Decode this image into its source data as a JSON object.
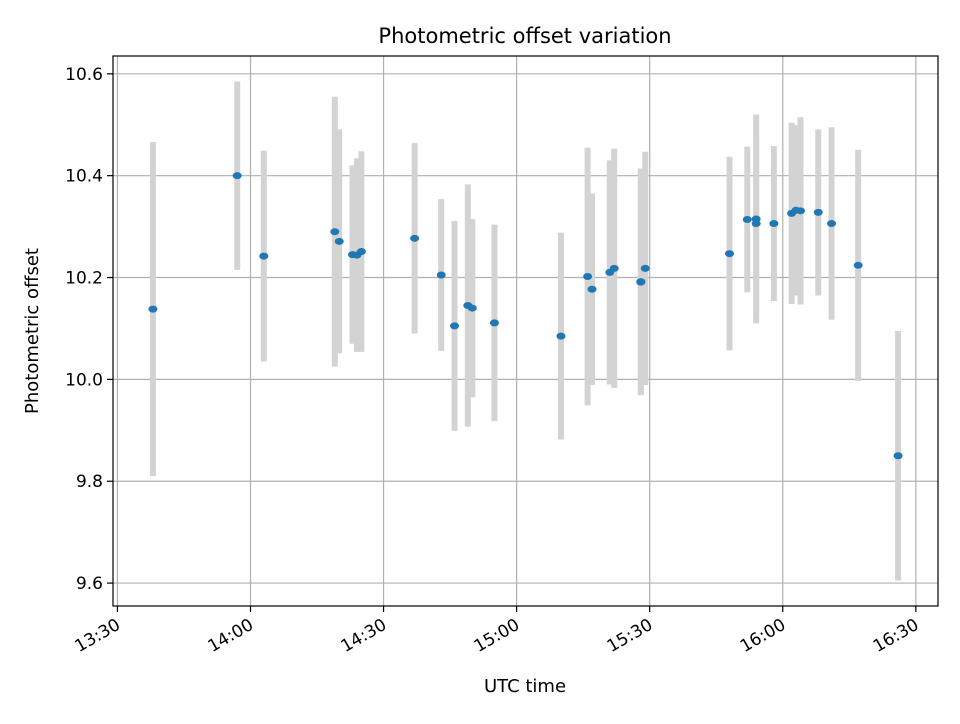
{
  "chart_data": {
    "type": "scatter",
    "title": "Photometric offset variation",
    "xlabel": "UTC time",
    "ylabel": "Photometric offset",
    "xlim": [
      "13:29",
      "16:35"
    ],
    "ylim": [
      9.555,
      10.635
    ],
    "grid": true,
    "colors": {
      "points": "#1f77b4",
      "errorbars": "#d3d3d3",
      "grid": "#b0b0b0"
    },
    "x_ticks": [
      "13:30",
      "14:00",
      "14:30",
      "15:00",
      "15:30",
      "16:00",
      "16:30"
    ],
    "y_ticks": [
      "9.6",
      "9.8",
      "10.0",
      "10.2",
      "10.4",
      "10.6"
    ],
    "points": [
      {
        "x": "13:38",
        "y": 10.138,
        "err": 0.328
      },
      {
        "x": "13:57",
        "y": 10.4,
        "err": 0.185
      },
      {
        "x": "14:03",
        "y": 10.242,
        "err": 0.207
      },
      {
        "x": "14:19",
        "y": 10.29,
        "err": 0.265
      },
      {
        "x": "14:20",
        "y": 10.271,
        "err": 0.22
      },
      {
        "x": "14:23",
        "y": 10.245,
        "err": 0.175
      },
      {
        "x": "14:24",
        "y": 10.244,
        "err": 0.19
      },
      {
        "x": "14:25",
        "y": 10.251,
        "err": 0.197
      },
      {
        "x": "14:37",
        "y": 10.277,
        "err": 0.187
      },
      {
        "x": "14:43",
        "y": 10.205,
        "err": 0.149
      },
      {
        "x": "14:46",
        "y": 10.105,
        "err": 0.206
      },
      {
        "x": "14:49",
        "y": 10.145,
        "err": 0.238
      },
      {
        "x": "14:50",
        "y": 10.14,
        "err": 0.175
      },
      {
        "x": "14:55",
        "y": 10.111,
        "err": 0.193
      },
      {
        "x": "15:10",
        "y": 10.085,
        "err": 0.203
      },
      {
        "x": "15:16",
        "y": 10.202,
        "err": 0.253
      },
      {
        "x": "15:17",
        "y": 10.177,
        "err": 0.188
      },
      {
        "x": "15:21",
        "y": 10.21,
        "err": 0.22
      },
      {
        "x": "15:22",
        "y": 10.218,
        "err": 0.235
      },
      {
        "x": "15:28",
        "y": 10.192,
        "err": 0.222
      },
      {
        "x": "15:28",
        "y": 10.191,
        "err": 0.222
      },
      {
        "x": "15:29",
        "y": 10.218,
        "err": 0.229
      },
      {
        "x": "15:48",
        "y": 10.247,
        "err": 0.19
      },
      {
        "x": "15:52",
        "y": 10.314,
        "err": 0.143
      },
      {
        "x": "15:54",
        "y": 10.315,
        "err": 0.205
      },
      {
        "x": "15:54",
        "y": 10.306,
        "err": 0.174
      },
      {
        "x": "15:58",
        "y": 10.306,
        "err": 0.152
      },
      {
        "x": "16:02",
        "y": 10.326,
        "err": 0.178
      },
      {
        "x": "16:03",
        "y": 10.332,
        "err": 0.167
      },
      {
        "x": "16:04",
        "y": 10.331,
        "err": 0.184
      },
      {
        "x": "16:08",
        "y": 10.328,
        "err": 0.163
      },
      {
        "x": "16:11",
        "y": 10.306,
        "err": 0.189
      },
      {
        "x": "16:17",
        "y": 10.224,
        "err": 0.227
      },
      {
        "x": "16:26",
        "y": 9.85,
        "err": 0.245
      }
    ]
  }
}
